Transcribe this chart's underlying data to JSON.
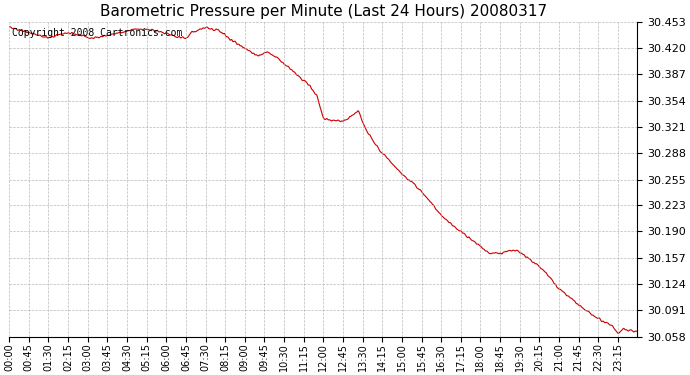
{
  "title": "Barometric Pressure per Minute (Last 24 Hours) 20080317",
  "copyright": "Copyright 2008 Cartronics.com",
  "line_color": "#cc0000",
  "bg_color": "#ffffff",
  "plot_bg_color": "#ffffff",
  "grid_color": "#aaaaaa",
  "ylim": [
    30.058,
    30.453
  ],
  "yticks": [
    30.058,
    30.091,
    30.124,
    30.157,
    30.19,
    30.223,
    30.255,
    30.288,
    30.321,
    30.354,
    30.387,
    30.42,
    30.453
  ],
  "xtick_labels": [
    "00:00",
    "00:45",
    "01:30",
    "02:15",
    "03:00",
    "03:45",
    "04:30",
    "05:15",
    "06:00",
    "06:45",
    "07:30",
    "08:15",
    "09:00",
    "09:45",
    "10:30",
    "11:15",
    "12:00",
    "12:45",
    "13:30",
    "14:15",
    "15:00",
    "15:45",
    "16:30",
    "17:15",
    "18:00",
    "18:45",
    "19:30",
    "20:15",
    "21:00",
    "21:45",
    "22:30",
    "23:15"
  ],
  "n_points": 1440
}
